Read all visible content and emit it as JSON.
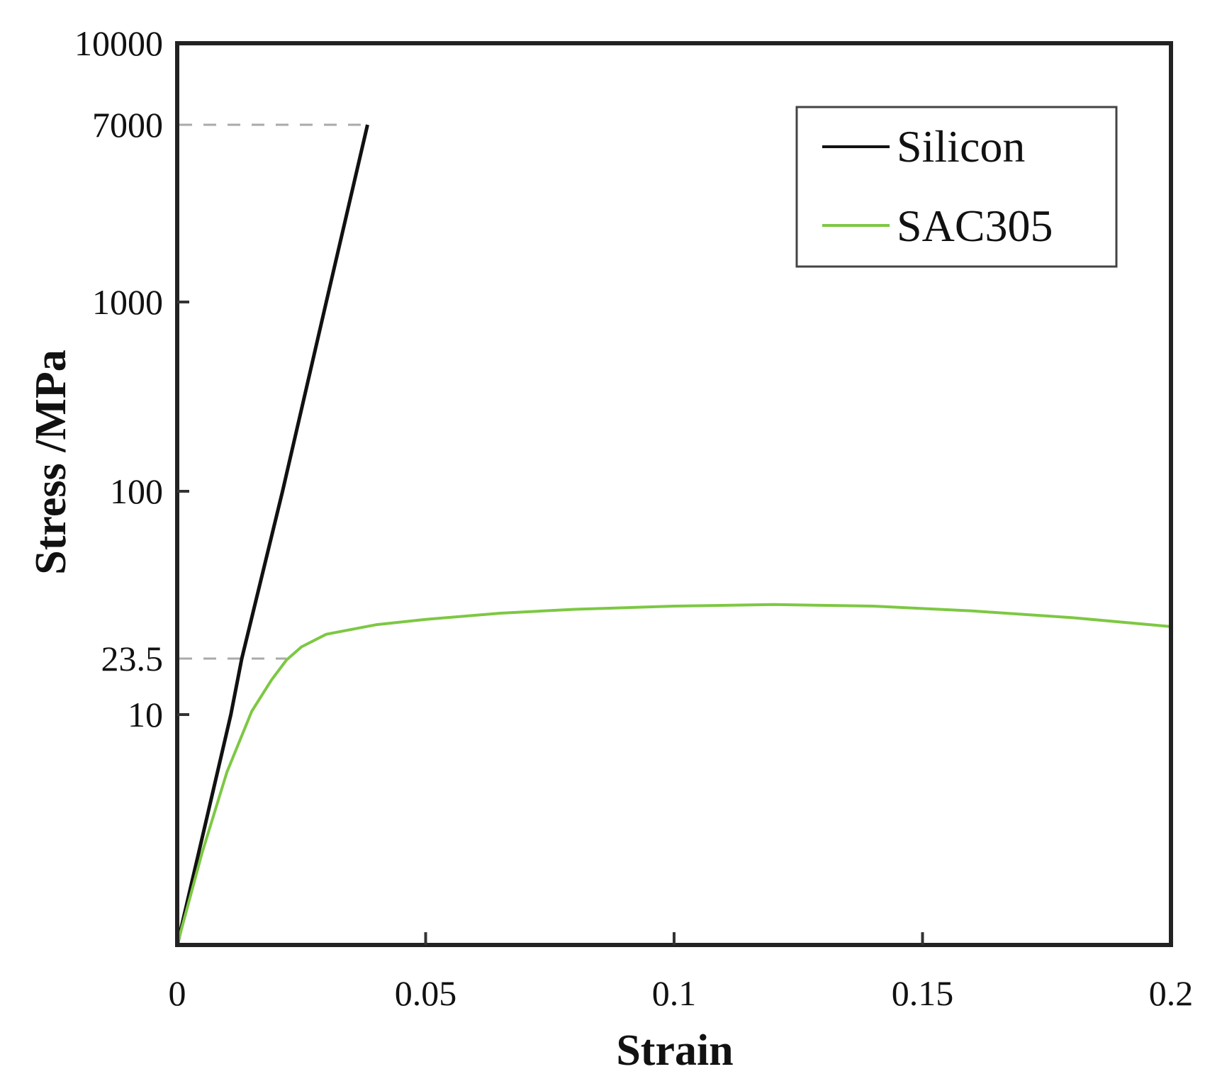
{
  "chart_data": {
    "type": "line",
    "title": "",
    "xlabel": "Strain",
    "ylabel": "Stress /MPa",
    "xlim": [
      0,
      0.2
    ],
    "ylim": [
      0,
      10000
    ],
    "yscale": "log-like (piecewise)",
    "x_ticks": [
      {
        "value": 0,
        "label": "0"
      },
      {
        "value": 0.05,
        "label": "0.05"
      },
      {
        "value": 0.1,
        "label": "0.1"
      },
      {
        "value": 0.15,
        "label": "0.15"
      },
      {
        "value": 0.2,
        "label": "0.2"
      }
    ],
    "y_ticks": [
      {
        "value": 10,
        "label": "10"
      },
      {
        "value": 23.5,
        "label": "23.5"
      },
      {
        "value": 100,
        "label": "100"
      },
      {
        "value": 1000,
        "label": "1000"
      },
      {
        "value": 7000,
        "label": "7000"
      },
      {
        "value": 10000,
        "label": "10000"
      }
    ],
    "reference_lines": [
      {
        "stress": 7000,
        "to_strain": 0.0383
      },
      {
        "stress": 23.5,
        "to_strain": 0.022
      }
    ],
    "legend": {
      "placement": "top-right"
    },
    "series": [
      {
        "name": "Silicon",
        "color": "#111111",
        "points": [
          [
            0,
            0
          ],
          [
            0.0108,
            10
          ],
          [
            0.013,
            23.5
          ],
          [
            0.0212,
            100
          ],
          [
            0.03,
            1000
          ],
          [
            0.0383,
            7000
          ]
        ]
      },
      {
        "name": "SAC305",
        "color": "#7dc843",
        "points": [
          [
            0,
            0
          ],
          [
            0.005,
            4
          ],
          [
            0.01,
            7.5
          ],
          [
            0.015,
            10.5
          ],
          [
            0.019,
            17
          ],
          [
            0.022,
            23
          ],
          [
            0.025,
            26
          ],
          [
            0.03,
            29
          ],
          [
            0.04,
            31.5
          ],
          [
            0.05,
            33
          ],
          [
            0.065,
            34.8
          ],
          [
            0.08,
            36
          ],
          [
            0.1,
            37
          ],
          [
            0.12,
            37.5
          ],
          [
            0.14,
            37
          ],
          [
            0.16,
            35.5
          ],
          [
            0.18,
            33.5
          ],
          [
            0.2,
            31
          ]
        ]
      }
    ]
  }
}
